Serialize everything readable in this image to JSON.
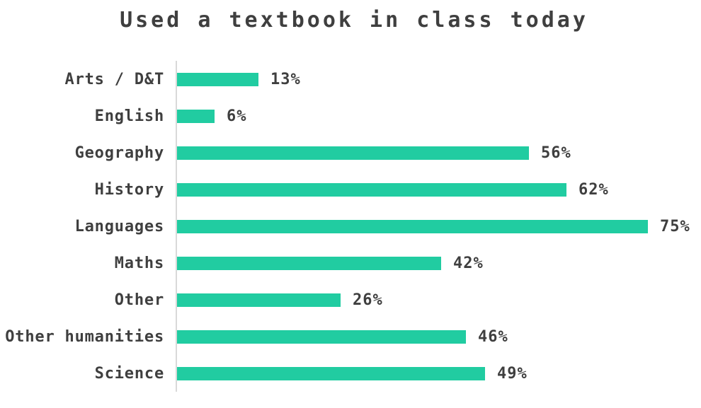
{
  "title": "Used a textbook in class today",
  "colors": {
    "bar": "#21cca1",
    "text": "#3f3f3f",
    "axis": "#d9d9d9"
  },
  "chart_data": {
    "type": "bar",
    "orientation": "horizontal",
    "title": "Used a textbook in class today",
    "categories": [
      "Arts / D&T",
      "English",
      "Geography",
      "History",
      "Languages",
      "Maths",
      "Other",
      "Other humanities",
      "Science"
    ],
    "values": [
      13,
      6,
      56,
      62,
      75,
      42,
      26,
      46,
      49
    ],
    "value_labels": [
      "13%",
      "6%",
      "56%",
      "62%",
      "75%",
      "42%",
      "26%",
      "46%",
      "49%"
    ],
    "unit": "%",
    "xlim": [
      0,
      83
    ],
    "grid": false,
    "legend": false,
    "data_labels": true,
    "axis_line": "left-vertical"
  }
}
